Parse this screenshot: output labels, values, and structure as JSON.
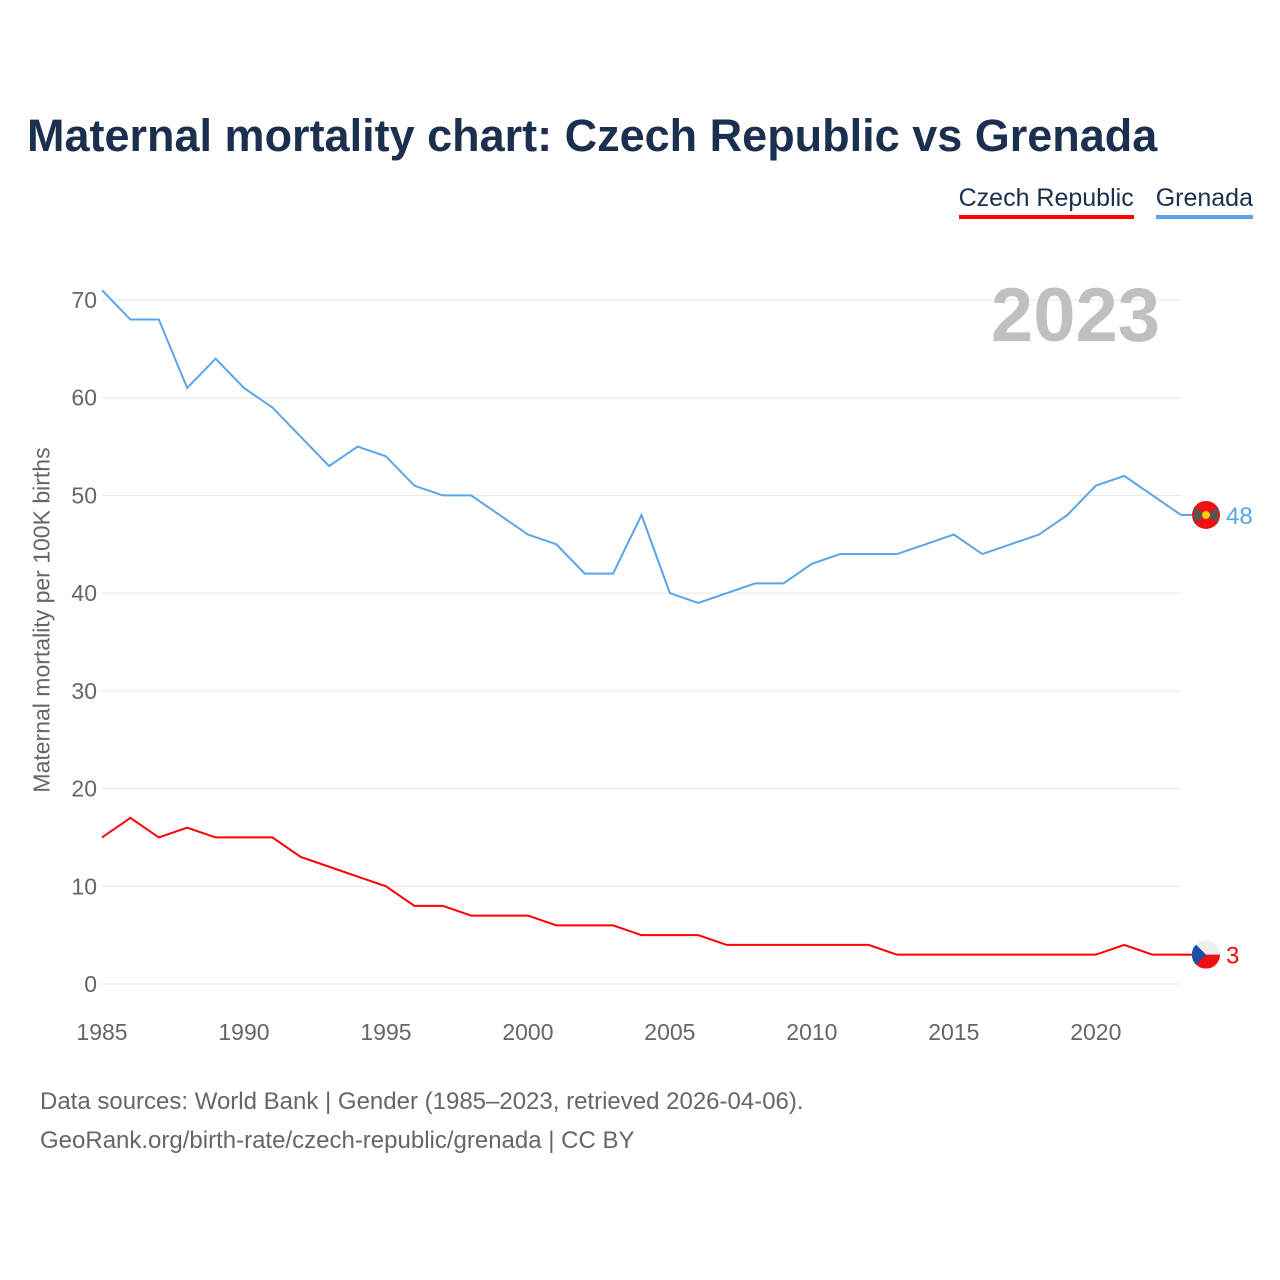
{
  "title": "Maternal mortality chart: Czech Republic vs Grenada",
  "year_badge": "2023",
  "footer": {
    "line1": "Data sources: World Bank | Gender (1985–2023, retrieved 2026-04-06).",
    "line2": "GeoRank.org/birth-rate/czech-republic/grenada | CC BY"
  },
  "chart_data": {
    "type": "line",
    "title": "Maternal mortality chart: Czech Republic vs Grenada",
    "xlabel": "",
    "ylabel": "Maternal mortality per 100K births",
    "xlim": [
      1985,
      2023
    ],
    "ylim": [
      0,
      70
    ],
    "xticks": [
      1985,
      1990,
      1995,
      2000,
      2005,
      2010,
      2015,
      2020
    ],
    "yticks": [
      0,
      10,
      20,
      30,
      40,
      50,
      60,
      70
    ],
    "grid": true,
    "legend_placement": "top-right",
    "x": [
      1985,
      1986,
      1987,
      1988,
      1989,
      1990,
      1991,
      1992,
      1993,
      1994,
      1995,
      1996,
      1997,
      1998,
      1999,
      2000,
      2001,
      2002,
      2003,
      2004,
      2005,
      2006,
      2007,
      2008,
      2009,
      2010,
      2011,
      2012,
      2013,
      2014,
      2015,
      2016,
      2017,
      2018,
      2019,
      2020,
      2021,
      2022,
      2023
    ],
    "series": [
      {
        "name": "Czech Republic",
        "color": "#ff0000",
        "end_label": "3",
        "values": [
          15,
          17,
          15,
          16,
          15,
          15,
          15,
          13,
          12,
          11,
          10,
          8,
          8,
          7,
          7,
          7,
          6,
          6,
          6,
          5,
          5,
          5,
          4,
          4,
          4,
          4,
          4,
          4,
          3,
          3,
          3,
          3,
          3,
          3,
          3,
          3,
          4,
          3,
          3
        ]
      },
      {
        "name": "Grenada",
        "color": "#5aa5ea",
        "end_label": "48",
        "values": [
          71,
          68,
          68,
          61,
          64,
          61,
          59,
          56,
          53,
          55,
          54,
          51,
          50,
          50,
          48,
          46,
          45,
          42,
          42,
          48,
          40,
          39,
          40,
          41,
          41,
          43,
          44,
          44,
          44,
          45,
          46,
          44,
          45,
          46,
          48,
          51,
          52,
          50,
          48
        ]
      }
    ]
  }
}
